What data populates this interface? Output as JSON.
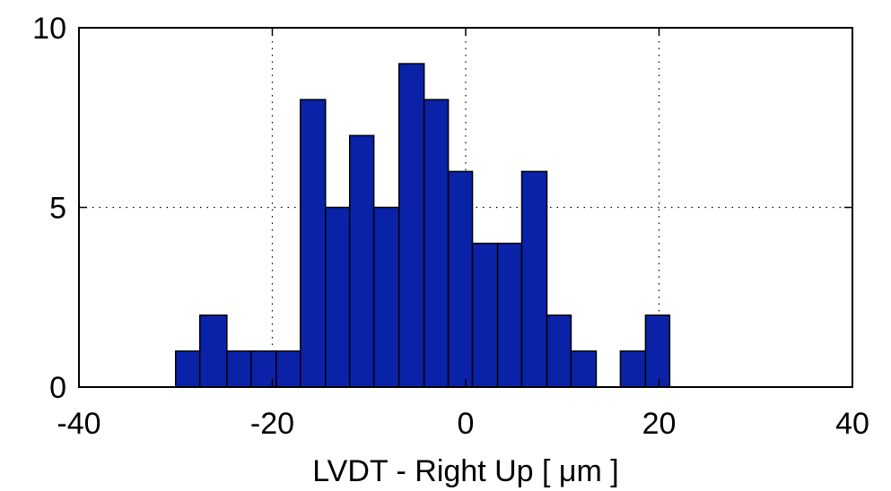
{
  "chart_data": {
    "type": "bar",
    "xlabel": "LVDT - Right Up [ μm ]",
    "xlim": [
      -40,
      40
    ],
    "ylim": [
      0,
      10
    ],
    "xticks": [
      -40,
      -20,
      0,
      20,
      40
    ],
    "xtick_labels": [
      "-40",
      "-20",
      "0",
      "20",
      "40"
    ],
    "yticks": [
      0,
      5,
      10
    ],
    "ytick_labels": [
      "0",
      "5",
      "10"
    ],
    "grid": true,
    "bar_color": "#0a22a8",
    "bins": [
      {
        "x0": -30.0,
        "x1": -27.5,
        "count": 1
      },
      {
        "x0": -27.5,
        "x1": -24.7,
        "count": 2
      },
      {
        "x0": -24.7,
        "x1": -22.2,
        "count": 1
      },
      {
        "x0": -22.2,
        "x1": -19.6,
        "count": 1
      },
      {
        "x0": -19.6,
        "x1": -17.1,
        "count": 1
      },
      {
        "x0": -17.1,
        "x1": -14.5,
        "count": 8
      },
      {
        "x0": -14.5,
        "x1": -12.0,
        "count": 5
      },
      {
        "x0": -12.0,
        "x1": -9.5,
        "count": 7
      },
      {
        "x0": -9.5,
        "x1": -6.9,
        "count": 5
      },
      {
        "x0": -6.9,
        "x1": -4.3,
        "count": 9
      },
      {
        "x0": -4.3,
        "x1": -1.8,
        "count": 8
      },
      {
        "x0": -1.8,
        "x1": 0.7,
        "count": 6
      },
      {
        "x0": 0.7,
        "x1": 3.3,
        "count": 4
      },
      {
        "x0": 3.3,
        "x1": 5.8,
        "count": 4
      },
      {
        "x0": 5.8,
        "x1": 8.4,
        "count": 6
      },
      {
        "x0": 8.4,
        "x1": 10.9,
        "count": 2
      },
      {
        "x0": 10.9,
        "x1": 13.5,
        "count": 1
      },
      {
        "x0": 13.5,
        "x1": 16.0,
        "count": 0
      },
      {
        "x0": 16.0,
        "x1": 18.6,
        "count": 1
      },
      {
        "x0": 18.6,
        "x1": 21.1,
        "count": 2
      }
    ]
  }
}
